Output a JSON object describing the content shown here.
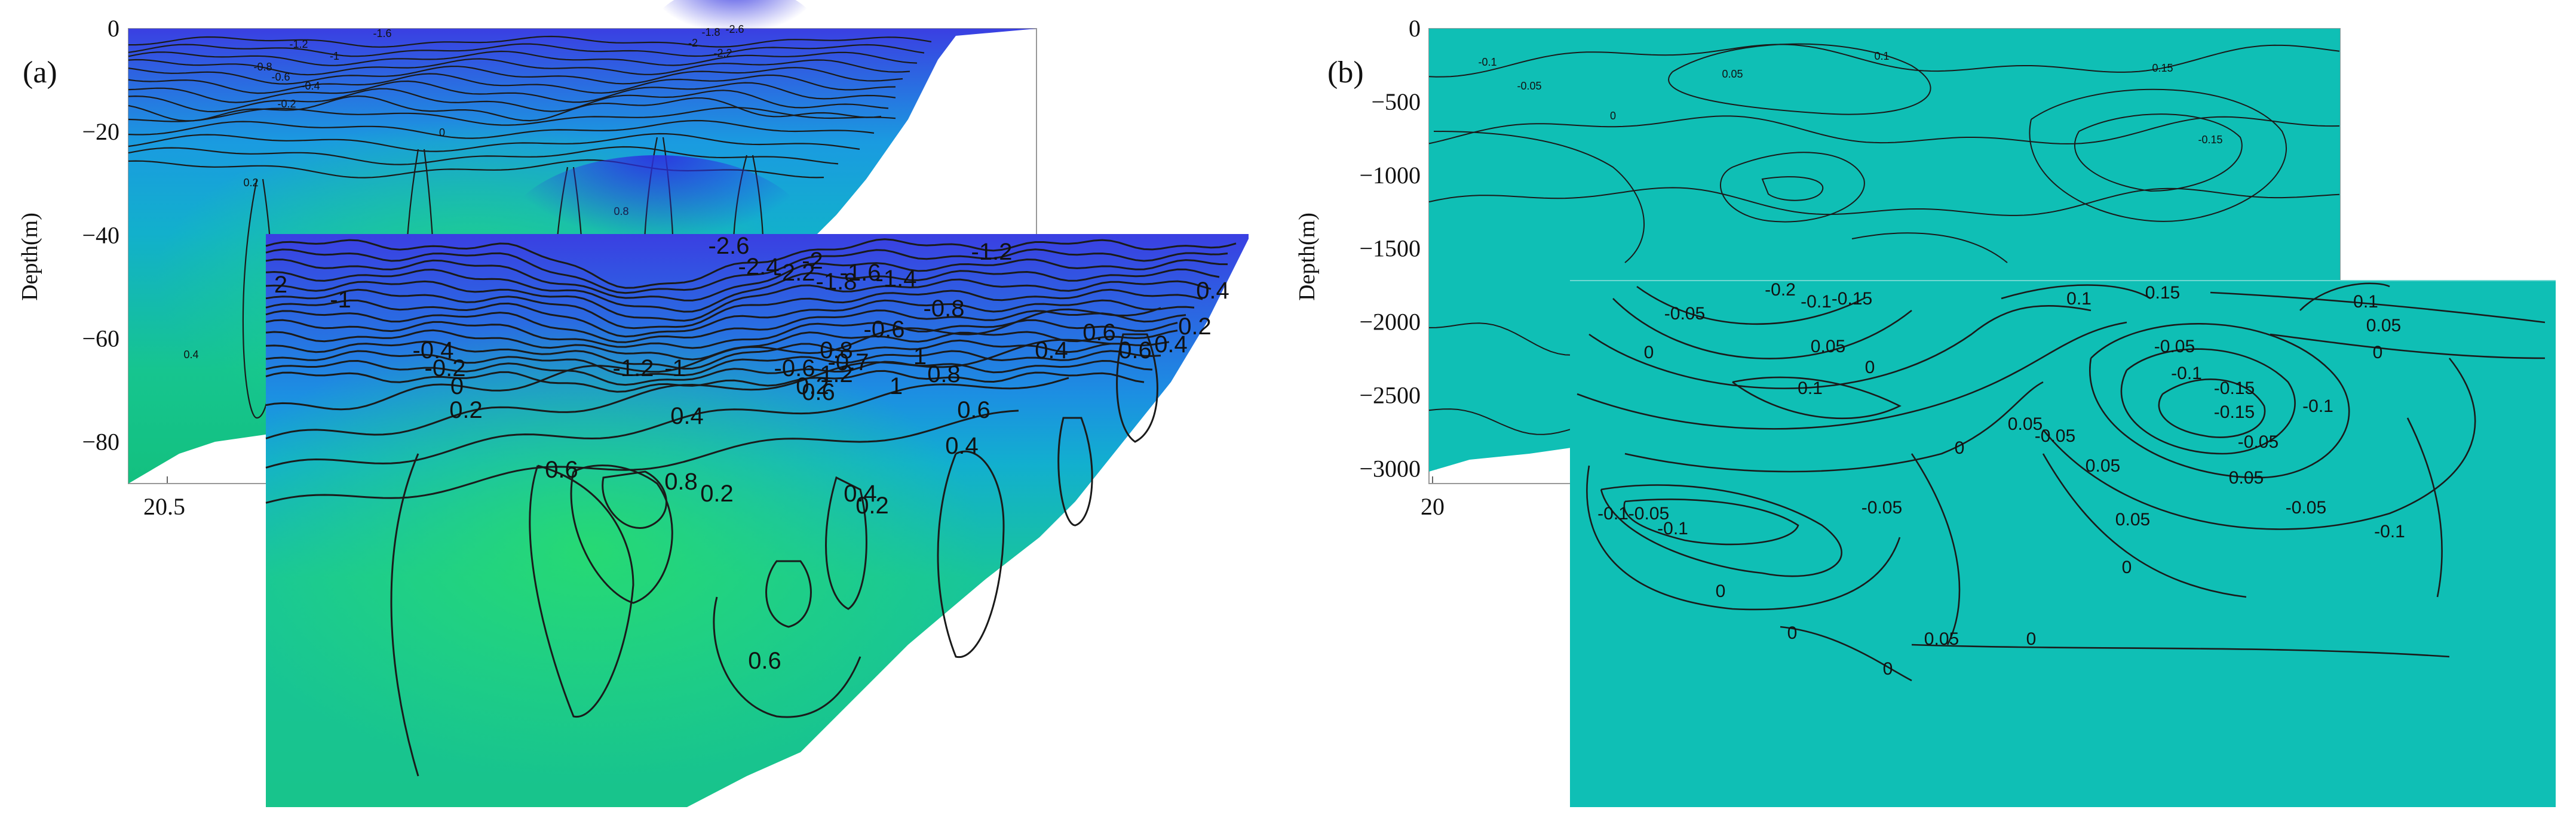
{
  "chart_data": [
    {
      "type": "contour",
      "panel_label": "(a)",
      "ylabel": "Depth(m)",
      "yticks": [
        "0",
        "−20",
        "−40",
        "−60",
        "−80"
      ],
      "xticks": [
        "20.5"
      ],
      "ylim": [
        -88,
        0
      ],
      "colors": {
        "low": "#3b3fe0",
        "mid": "#12a9d6",
        "high": "#1fd07a"
      },
      "contour_labels_main": [
        "-1.6",
        "-1.2",
        "-1",
        "-1.8",
        "-2",
        "-2.2",
        "-2.6",
        "-0.8",
        "-0.6",
        "-0.4",
        "-0.2",
        "0",
        "0.2",
        "0.4",
        "0.6",
        "0.8",
        "1",
        "1.2"
      ],
      "inset": {
        "contour_labels": [
          "2",
          "-1",
          "-2.6",
          "-2.4",
          "-2.2",
          "-2",
          "-1.8",
          "-1.6",
          "-1.4",
          "-1.2",
          "-0.8",
          "-0.6",
          "-0.4",
          "-0.2",
          "0",
          "0.2",
          "0.4",
          "0.6",
          "0.8",
          "1",
          "1.2",
          "-1.2",
          "-1",
          "-0.6",
          "-0.7",
          "0.2",
          "1",
          "0.8",
          "0.6",
          "0.4",
          "0.2",
          "0.4",
          "0.6",
          "0.6",
          "0.4",
          "0.2",
          "0.4",
          "0.6",
          "0.8",
          "0.2",
          "0.4",
          "0.6"
        ]
      }
    },
    {
      "type": "contour",
      "panel_label": "(b)",
      "ylabel": "Depth(m)",
      "yticks": [
        "0",
        "−500",
        "−1000",
        "−1500",
        "−2000",
        "−2500",
        "−3000"
      ],
      "xticks": [
        "20"
      ],
      "ylim": [
        -3100,
        0
      ],
      "colors": {
        "fill": "#10bfb5"
      },
      "contour_labels_main": [
        "-0.1",
        "-0.05",
        "0",
        "0.05",
        "0.1",
        "0.15",
        "-0.15"
      ],
      "inset": {
        "contour_labels": [
          "-0.2",
          "-0.15",
          "-0.1",
          "-0.05",
          "0",
          "0.05",
          "0.1",
          "0.15",
          "0.1",
          "0.05",
          "0",
          "-0.05",
          "-0.1",
          "-0.15",
          "-0.1",
          "-0.15",
          "-0.05",
          "0.05",
          "0.1",
          "0",
          "0.05",
          "-0.05",
          "-0.1",
          "-0.1",
          "-0.05",
          "0.05",
          "0",
          "0",
          "0",
          "0.05",
          "0",
          "-0.05",
          "0.05",
          "0",
          "0",
          "-0.05",
          "-0.1"
        ]
      }
    }
  ]
}
